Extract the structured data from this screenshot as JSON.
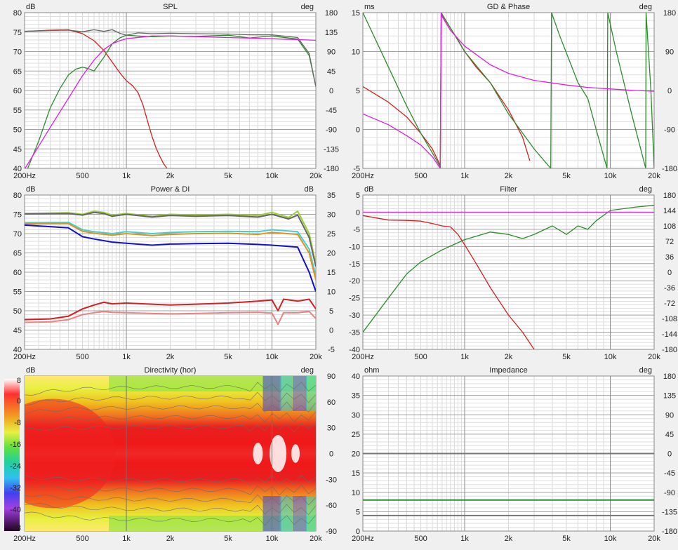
{
  "chart_data": [
    {
      "id": "spl",
      "type": "line",
      "title": "SPL",
      "ylabel_left": "dB",
      "ylabel_right": "deg",
      "xscale": "log",
      "xlim": [
        200,
        20000
      ],
      "ylim": [
        40,
        80
      ],
      "ylim_right": [
        -180,
        180
      ],
      "xticks": [
        "200Hz",
        "500",
        "1k",
        "2k",
        "5k",
        "10k",
        "20k"
      ],
      "yticks_left": [
        "80",
        "75",
        "70",
        "65",
        "60",
        "55",
        "50",
        "45",
        "40"
      ],
      "yticks_right": [
        "180",
        "135",
        "90",
        "45",
        "0",
        "-45",
        "-90",
        "-135",
        "-180"
      ],
      "series": [
        {
          "color": "#d42020",
          "x": [
            200,
            300,
            400,
            500,
            600,
            700,
            800,
            900,
            1000,
            1100,
            1200,
            1300,
            1400,
            1500,
            1600,
            1700,
            1800,
            1900
          ],
          "y": [
            75.2,
            75.5,
            75.6,
            74.6,
            72.8,
            70.3,
            67.3,
            64.6,
            62.5,
            61.3,
            59.5,
            56.3,
            52.0,
            48.2,
            45.2,
            43.0,
            41.2,
            40.0
          ]
        },
        {
          "color": "#2e8b2e",
          "x": [
            200,
            250,
            300,
            350,
            400,
            450,
            500,
            550,
            600,
            700,
            800,
            900,
            1000,
            1200,
            1500,
            2000,
            3000,
            5000,
            7000,
            10000,
            15000,
            18000,
            20000
          ],
          "y": [
            38.0,
            47.0,
            55.5,
            60.5,
            64.0,
            65.5,
            66.0,
            65.6,
            65.0,
            68.5,
            72.0,
            73.5,
            74.2,
            74.0,
            73.8,
            74.0,
            73.9,
            74.2,
            73.5,
            74.0,
            73.2,
            69.0,
            61.0
          ]
        },
        {
          "color": "#666666",
          "x": [
            200,
            300,
            400,
            500,
            600,
            700,
            800,
            900,
            1000,
            1200,
            1500,
            2000,
            3000,
            5000,
            7000,
            10000,
            15000,
            18000,
            20000
          ],
          "y": [
            75.2,
            75.4,
            75.5,
            75.1,
            75.6,
            75.2,
            75.6,
            74.7,
            74.2,
            74.8,
            74.6,
            74.7,
            74.6,
            74.5,
            74.3,
            74.3,
            73.6,
            69.5,
            61.0
          ]
        },
        {
          "color": "#e020e0",
          "x": [
            200,
            300,
            400,
            500,
            600,
            700,
            800,
            900,
            1000,
            1500,
            2000,
            5000,
            10000,
            20000
          ],
          "y": [
            39.8,
            50.5,
            58.0,
            63.8,
            67.8,
            70.5,
            72.0,
            72.8,
            73.3,
            74.0,
            74.0,
            73.6,
            73.3,
            72.9
          ]
        }
      ]
    },
    {
      "id": "gd",
      "type": "line",
      "title": "GD & Phase",
      "ylabel_left": "ms",
      "ylabel_right": "deg",
      "xscale": "log",
      "xlim": [
        200,
        20000
      ],
      "ylim": [
        -5,
        15
      ],
      "ylim_right": [
        -180,
        180
      ],
      "xticks": [
        "200Hz",
        "500",
        "1k",
        "2k",
        "5k",
        "10k",
        "20k"
      ],
      "yticks_left": [
        "15",
        "10",
        "5",
        "0",
        "-5"
      ],
      "yticks_right": [
        "180",
        "90",
        "0",
        "-90",
        "-180"
      ],
      "series": [
        {
          "color": "#d42020",
          "x": [
            200,
            300,
            400,
            500,
            600,
            680,
            690,
            700,
            800,
            900,
            1000,
            1200,
            1500,
            2000,
            2500,
            2800
          ],
          "y": [
            5.5,
            3.5,
            1.6,
            -0.5,
            -2.5,
            -4.6,
            15.0,
            14.7,
            13.0,
            11.5,
            10.0,
            8.0,
            6.0,
            2.5,
            -1.0,
            -4.0
          ]
        },
        {
          "color": "#2e8b2e",
          "x": [
            200,
            300,
            400,
            500,
            600,
            680,
            690,
            700,
            800,
            1000,
            1500,
            2000,
            3000,
            3900,
            3950,
            4500,
            6000,
            7000,
            8000,
            9500,
            9600,
            11000,
            14000,
            17500,
            17600,
            19000,
            20000
          ],
          "y": [
            15.0,
            8.0,
            3.0,
            -0.5,
            -3.0,
            -4.8,
            15.0,
            14.8,
            13.0,
            10.0,
            6.0,
            2.0,
            -2.5,
            -5.0,
            15.0,
            12.0,
            6.0,
            4.0,
            0.0,
            -5.0,
            15.0,
            10.0,
            2.0,
            -5.0,
            15.0,
            5.0,
            -5.0
          ]
        },
        {
          "color": "#e020e0",
          "x": [
            200,
            300,
            400,
            500,
            600,
            680,
            690,
            700,
            800,
            1000,
            1500,
            2000,
            3000,
            5000,
            7000,
            10000,
            15000,
            20000
          ],
          "y": [
            2.0,
            0.6,
            -0.8,
            -2.0,
            -3.5,
            -5.0,
            15.0,
            14.5,
            12.7,
            10.7,
            8.3,
            7.2,
            6.3,
            5.7,
            5.4,
            5.2,
            5.0,
            4.9
          ]
        }
      ]
    },
    {
      "id": "power",
      "type": "line",
      "title": "Power & DI",
      "ylabel_left": "dB",
      "ylabel_right": "dB",
      "xscale": "log",
      "xlim": [
        200,
        20000
      ],
      "ylim": [
        40,
        80
      ],
      "ylim_right": [
        -5,
        35
      ],
      "xticks": [
        "200Hz",
        "500",
        "1k",
        "2k",
        "5k",
        "10k",
        "20k"
      ],
      "yticks_left": [
        "80",
        "75",
        "70",
        "65",
        "60",
        "55",
        "50",
        "45",
        "40"
      ],
      "yticks_right": [
        "35",
        "30",
        "25",
        "20",
        "15",
        "10",
        "5",
        "0",
        "-5"
      ],
      "series": [
        {
          "color": "#9acd32",
          "x": [
            200,
            400,
            500,
            600,
            700,
            800,
            1000,
            1500,
            2000,
            3000,
            5000,
            8000,
            10000,
            13000,
            15000,
            18000,
            20000
          ],
          "y": [
            75.2,
            75.4,
            75.0,
            75.8,
            75.5,
            74.8,
            75.2,
            74.5,
            75.0,
            74.8,
            75.0,
            74.7,
            75.5,
            74.2,
            75.8,
            70.0,
            62.0
          ]
        },
        {
          "color": "#666666",
          "x": [
            200,
            400,
            500,
            600,
            700,
            800,
            1000,
            1500,
            2000,
            3000,
            5000,
            8000,
            10000,
            13000,
            15000,
            18000,
            20000
          ],
          "y": [
            75.1,
            75.2,
            74.8,
            75.5,
            75.2,
            74.5,
            75.0,
            74.3,
            74.7,
            74.5,
            74.7,
            74.3,
            75.0,
            73.8,
            74.8,
            69.0,
            61.5
          ]
        },
        {
          "color": "#40d0d0",
          "x": [
            200,
            400,
            500,
            600,
            800,
            1000,
            1500,
            2000,
            3000,
            5000,
            8000,
            10000,
            15000,
            18000,
            20000
          ],
          "y": [
            72.8,
            72.9,
            71.0,
            70.5,
            70.0,
            70.5,
            70.0,
            70.3,
            70.5,
            70.6,
            70.5,
            71.0,
            70.5,
            66.0,
            59.0
          ]
        },
        {
          "color": "#e09020",
          "x": [
            200,
            400,
            500,
            600,
            800,
            1000,
            1500,
            2000,
            3000,
            5000,
            8000,
            10000,
            15000,
            18000,
            20000
          ],
          "y": [
            72.5,
            72.6,
            70.6,
            70.1,
            69.6,
            70.0,
            69.5,
            69.8,
            70.0,
            70.1,
            69.8,
            70.3,
            69.8,
            65.0,
            58.0
          ]
        },
        {
          "color": "#1010d0",
          "x": [
            200,
            400,
            500,
            600,
            800,
            1000,
            1500,
            2000,
            3000,
            5000,
            8000,
            10000,
            15000,
            18000,
            20000
          ],
          "y": [
            72.2,
            71.5,
            69.2,
            68.6,
            67.8,
            67.5,
            67.0,
            67.3,
            67.4,
            67.5,
            67.2,
            67.0,
            66.5,
            60.0,
            55.0
          ]
        },
        {
          "color": "#d42020",
          "x": [
            200,
            300,
            400,
            500,
            600,
            700,
            800,
            1000,
            1500,
            2000,
            3000,
            5000,
            8000,
            10000,
            11000,
            12000,
            15000,
            18000,
            20000
          ],
          "y": [
            47.7,
            47.9,
            48.6,
            50.5,
            51.5,
            52.2,
            51.8,
            52.0,
            51.7,
            51.5,
            51.7,
            52.0,
            52.5,
            52.8,
            50.0,
            53.0,
            52.5,
            53.0,
            50.5
          ]
        },
        {
          "color": "#f08080",
          "x": [
            200,
            300,
            400,
            500,
            600,
            700,
            800,
            1000,
            1500,
            2000,
            3000,
            5000,
            8000,
            10000,
            11000,
            12000,
            15000,
            18000,
            20000
          ],
          "y": [
            47.0,
            47.1,
            47.7,
            49.0,
            49.5,
            49.8,
            49.6,
            49.5,
            49.3,
            49.2,
            49.3,
            49.5,
            49.6,
            49.4,
            46.5,
            49.5,
            49.5,
            49.8,
            48.0
          ]
        }
      ]
    },
    {
      "id": "filter",
      "type": "line",
      "title": "Filter",
      "ylabel_left": "dB",
      "ylabel_right": "deg",
      "xscale": "log",
      "xlim": [
        200,
        20000
      ],
      "ylim": [
        -40,
        5
      ],
      "ylim_right": [
        -180,
        180
      ],
      "xticks": [
        "200Hz",
        "500",
        "1k",
        "2k",
        "5k",
        "10k",
        "20k"
      ],
      "yticks_left": [
        "5",
        "0",
        "-5",
        "-10",
        "-15",
        "-20",
        "-25",
        "-30",
        "-35",
        "-40"
      ],
      "yticks_right": [
        "180",
        "144",
        "108",
        "72",
        "36",
        "0",
        "-36",
        "-72",
        "-108",
        "-144",
        "-180"
      ],
      "series": [
        {
          "color": "#d42020",
          "x": [
            200,
            300,
            400,
            500,
            600,
            700,
            800,
            900,
            1000,
            1200,
            1500,
            2000,
            2500,
            3000
          ],
          "y": [
            -1.0,
            -2.3,
            -2.4,
            -2.6,
            -3.3,
            -4.0,
            -4.3,
            -6.5,
            -9.5,
            -15.0,
            -22.0,
            -30.0,
            -35.0,
            -40.0
          ]
        },
        {
          "color": "#2e8b2e",
          "x": [
            200,
            300,
            400,
            500,
            700,
            1000,
            1500,
            2000,
            2500,
            3000,
            4000,
            5000,
            6000,
            7000,
            8000,
            10000,
            15000,
            20000
          ],
          "y": [
            -35.0,
            -25.0,
            -18.0,
            -14.5,
            -11.0,
            -8.0,
            -5.8,
            -6.5,
            -7.7,
            -6.5,
            -4.0,
            -6.5,
            -4.0,
            -5.0,
            -2.5,
            0.5,
            1.5,
            2.0
          ]
        },
        {
          "color": "#e020e0",
          "x": [
            200,
            20000
          ],
          "y": [
            0.0,
            0.0
          ]
        }
      ]
    },
    {
      "id": "directivity",
      "type": "heatmap",
      "title": "Directivity (hor)",
      "ylabel_left": "dB",
      "ylabel_right": "deg",
      "xscale": "log",
      "xlim": [
        200,
        20000
      ],
      "ylim": [
        -90,
        90
      ],
      "xticks": [
        "200Hz",
        "500",
        "1k",
        "2k",
        "5k",
        "10k",
        "20k"
      ],
      "yticks_right": [
        "90",
        "60",
        "30",
        "0",
        "-30",
        "-60",
        "-90"
      ],
      "colorbar_ticks": [
        "8",
        "0",
        "-8",
        "-16",
        "-24",
        "-32",
        "-40",
        "-48"
      ],
      "colorbar_range": [
        -48,
        8
      ]
    },
    {
      "id": "impedance",
      "type": "line",
      "title": "Impedance",
      "ylabel_left": "ohm",
      "ylabel_right": "deg",
      "xscale": "log",
      "xlim": [
        200,
        20000
      ],
      "ylim": [
        0,
        40
      ],
      "ylim_right": [
        -180,
        180
      ],
      "xticks": [
        "200Hz",
        "500",
        "1k",
        "2k",
        "5k",
        "10k",
        "20k"
      ],
      "yticks_left": [
        "40",
        "35",
        "30",
        "25",
        "20",
        "15",
        "10",
        "5",
        "0"
      ],
      "yticks_right": [
        "180",
        "135",
        "90",
        "45",
        "0",
        "-45",
        "-90",
        "-135",
        "-180"
      ],
      "series": [
        {
          "color": "#2e8b2e",
          "x": [
            200,
            20000
          ],
          "y": [
            8.0,
            8.0
          ]
        },
        {
          "color": "#777777",
          "x": [
            200,
            20000
          ],
          "y": [
            4.0,
            4.0
          ]
        },
        {
          "color": "#777777",
          "x": [
            200,
            20000
          ],
          "y": [
            20.0,
            20.0
          ]
        }
      ]
    }
  ]
}
